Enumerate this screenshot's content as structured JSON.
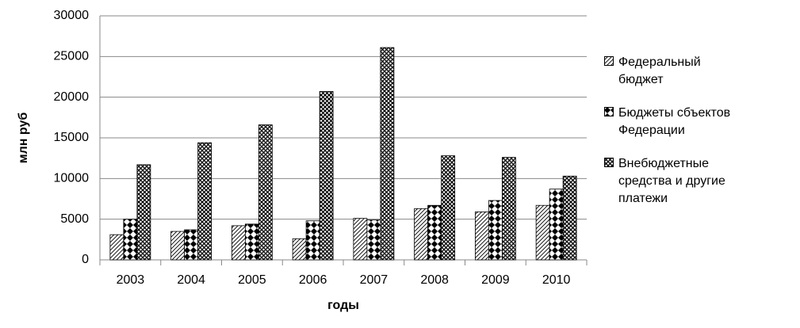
{
  "chart_data": {
    "type": "bar",
    "x_label": "годы",
    "y_label": "млн руб",
    "categories": [
      "2003",
      "2004",
      "2005",
      "2006",
      "2007",
      "2008",
      "2009",
      "2010"
    ],
    "series": [
      {
        "name": "Федеральный бюджет",
        "color": "#000000",
        "pattern": "diagonal",
        "values": [
          3100,
          3500,
          4200,
          2600,
          5100,
          6300,
          5900,
          6700
        ]
      },
      {
        "name": "Бюджеты сбъектов Федерации",
        "color": "#000000",
        "pattern": "diamond",
        "values": [
          5000,
          3700,
          4400,
          4800,
          4900,
          6700,
          7300,
          8700
        ]
      },
      {
        "name": "Внебюджетные средства и другие платежи",
        "color": "#000000",
        "pattern": "crosshatch",
        "values": [
          11700,
          14400,
          16600,
          20700,
          26100,
          12800,
          12600,
          10300
        ]
      }
    ],
    "ylim": [
      0,
      30000
    ],
    "yticks": [
      0,
      5000,
      10000,
      15000,
      20000,
      25000,
      30000
    ],
    "grid": true,
    "legend": "right"
  }
}
